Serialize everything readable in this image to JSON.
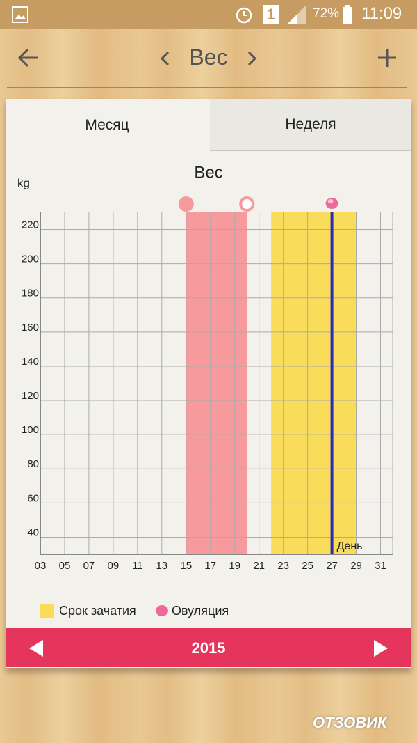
{
  "status_bar": {
    "notification_count": "1",
    "battery": "72%",
    "time": "11:09"
  },
  "header": {
    "title": "Вес"
  },
  "tabs": [
    "Месяц",
    "Неделя"
  ],
  "chart_data": {
    "type": "timeline",
    "title": "Вес",
    "y_label": "kg",
    "x_label": "День",
    "xlim": [
      3,
      32
    ],
    "xticks": [
      {
        "value": 3,
        "label": "03"
      },
      {
        "value": 5,
        "label": "05"
      },
      {
        "value": 7,
        "label": "07"
      },
      {
        "value": 9,
        "label": "09"
      },
      11,
      13,
      15,
      17,
      19,
      21,
      23,
      25,
      27,
      29,
      31
    ],
    "ylim": [
      30,
      230
    ],
    "yticks": [
      40,
      60,
      80,
      100,
      120,
      140,
      160,
      180,
      200,
      220
    ],
    "grid": true,
    "bands": [
      {
        "start": 15,
        "end": 20,
        "color": "#f79a9e"
      },
      {
        "name": "Срок зачатия",
        "start": 22,
        "end": 29,
        "color": "#f8dc5a"
      }
    ],
    "ovulation": {
      "name": "Овуляция",
      "x": 27,
      "color": "#2c2cb8",
      "marker_color": "#f0679a"
    }
  },
  "footer": {
    "year": "2015"
  },
  "watermark": "ОТЗОВИК"
}
